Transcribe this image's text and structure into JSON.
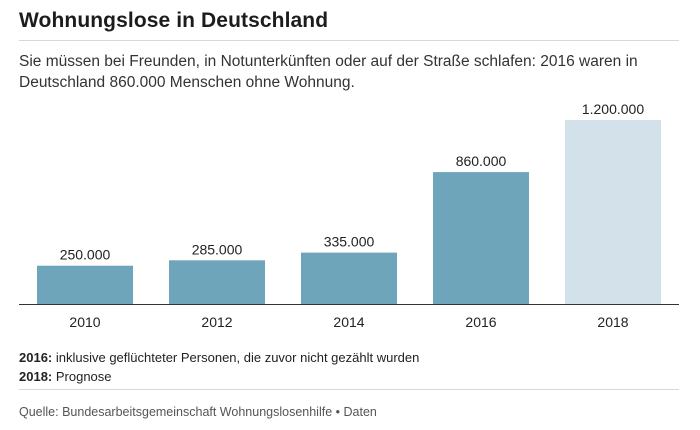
{
  "header": {
    "title": "Wohnungslose in Deutschland",
    "subtitle": "Sie müssen bei Freunden, in Notunterkünften oder auf der Straße schlafen: 2016 waren in Deutschland 860.000 Menschen ohne Wohnung."
  },
  "chart_data": {
    "type": "bar",
    "categories": [
      "2010",
      "2012",
      "2014",
      "2016",
      "2018"
    ],
    "values": [
      250000,
      285000,
      335000,
      860000,
      1200000
    ],
    "value_labels": [
      "250.000",
      "285.000",
      "335.000",
      "860.000",
      "1.200.000"
    ],
    "ylim": [
      0,
      1200000
    ],
    "grid": false,
    "colors": {
      "bar": "#6fa5ba",
      "forecast_bar": "#d3e2ea",
      "axis": "#333333"
    },
    "forecast_categories": [
      "2018"
    ]
  },
  "notes": [
    {
      "key": "2016:",
      "text": " inklusive geflüchteter Personen, die zuvor nicht gezählt wurden"
    },
    {
      "key": "2018:",
      "text": " Prognose"
    }
  ],
  "source": {
    "label": "Quelle: Bundesarbeitsgemeinschaft Wohnungslosenhilfe",
    "separator": "•",
    "link": "Daten"
  }
}
